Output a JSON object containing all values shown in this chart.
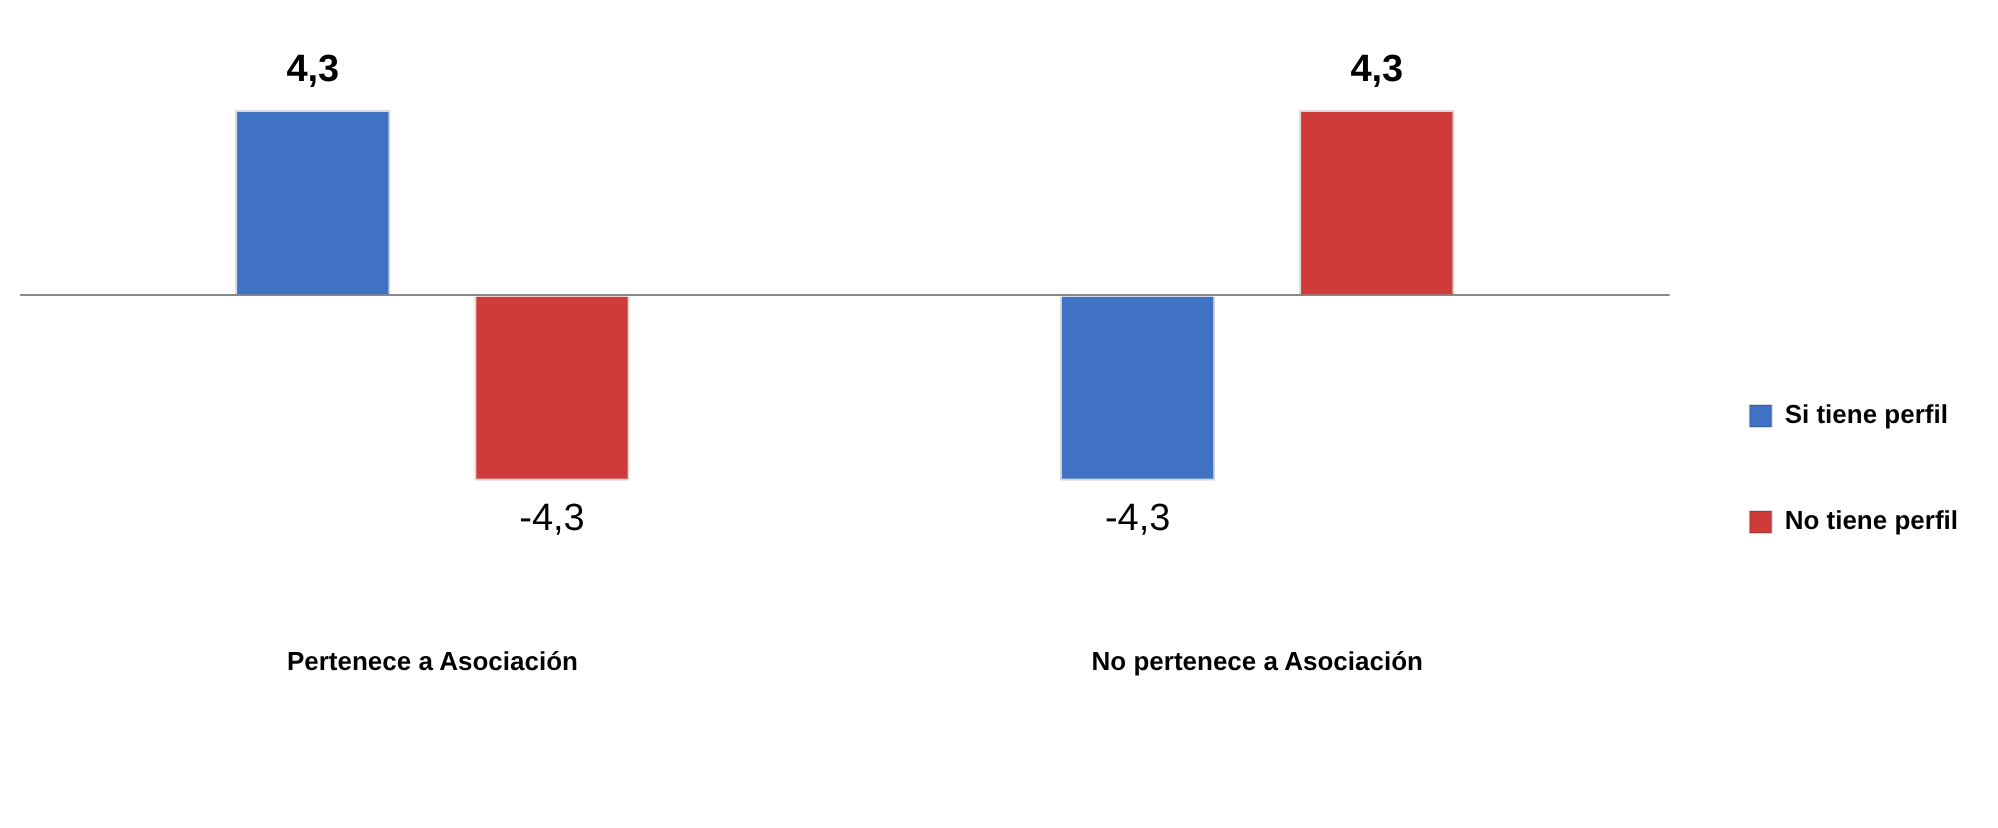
{
  "chart_data": {
    "type": "bar",
    "categories": [
      "Pertenece a Asociación",
      "No pertenece a Asociación"
    ],
    "series": [
      {
        "name": "Si tiene perfil",
        "color": "#3f72c4",
        "values": [
          4.3,
          -4.3
        ],
        "value_labels": [
          "4,3",
          "-4,3"
        ]
      },
      {
        "name": "No tiene perfil",
        "color": "#cf3b3b",
        "values": [
          -4.3,
          4.3
        ],
        "value_labels": [
          "-4,3",
          "4,3"
        ]
      }
    ],
    "legend": "right"
  }
}
